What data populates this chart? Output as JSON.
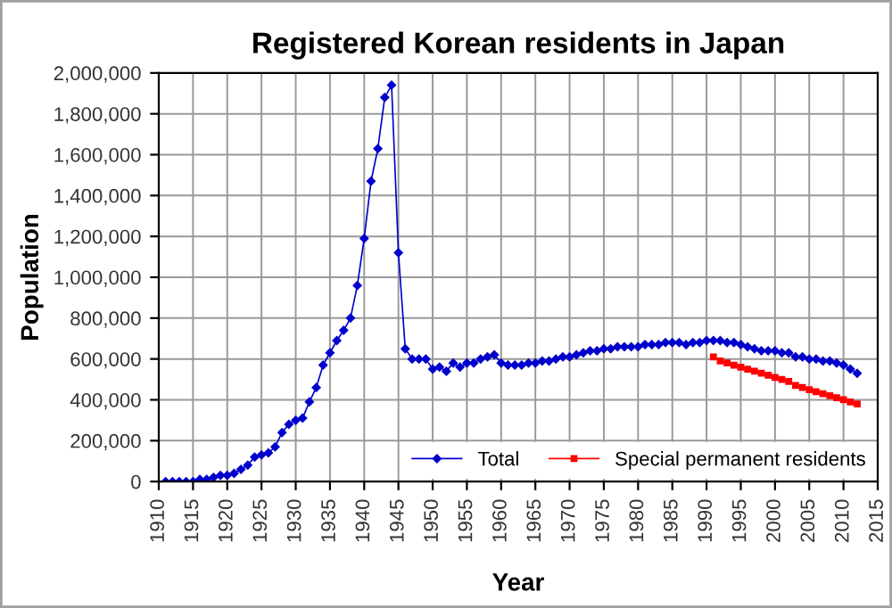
{
  "chart_data": {
    "type": "line",
    "title": "Registered Korean residents in Japan",
    "xlabel": "Year",
    "ylabel": "Population",
    "xlim": [
      1910,
      2015
    ],
    "xticks": [
      1910,
      1915,
      1920,
      1925,
      1930,
      1935,
      1940,
      1945,
      1950,
      1955,
      1960,
      1965,
      1970,
      1975,
      1980,
      1985,
      1990,
      1995,
      2000,
      2005,
      2010,
      2015
    ],
    "ylim": [
      0,
      2000000
    ],
    "yticks": [
      {
        "value": 0,
        "label": "0"
      },
      {
        "value": 200000,
        "label": "200,000"
      },
      {
        "value": 400000,
        "label": "400,000"
      },
      {
        "value": 600000,
        "label": "600,000"
      },
      {
        "value": 800000,
        "label": "800,000"
      },
      {
        "value": 1000000,
        "label": "1,000,000"
      },
      {
        "value": 1200000,
        "label": "1,200,000"
      },
      {
        "value": 1400000,
        "label": "1,400,000"
      },
      {
        "value": 1600000,
        "label": "1,600,000"
      },
      {
        "value": 1800000,
        "label": "1,800,000"
      },
      {
        "value": 2000000,
        "label": "2,000,000"
      }
    ],
    "grid": true,
    "legend": "bottom right",
    "series": [
      {
        "name": "Total",
        "color": "#0000cc",
        "marker": "diamond",
        "line_style": "solid",
        "x": [
          1911,
          1912,
          1913,
          1914,
          1915,
          1916,
          1917,
          1918,
          1919,
          1920,
          1921,
          1922,
          1923,
          1924,
          1925,
          1926,
          1927,
          1928,
          1929,
          1930,
          1931,
          1932,
          1933,
          1934,
          1935,
          1936,
          1937,
          1938,
          1939,
          1940,
          1941,
          1942,
          1943,
          1944,
          1945,
          1946,
          1947,
          1948,
          1949,
          1950,
          1951,
          1952,
          1953,
          1954,
          1955,
          1956,
          1957,
          1958,
          1959,
          1960,
          1961,
          1962,
          1963,
          1964,
          1965,
          1966,
          1967,
          1968,
          1969,
          1970,
          1971,
          1972,
          1973,
          1974,
          1975,
          1976,
          1977,
          1978,
          1979,
          1980,
          1981,
          1982,
          1983,
          1984,
          1985,
          1986,
          1987,
          1988,
          1989,
          1990,
          1991,
          1992,
          1993,
          1994,
          1995,
          1996,
          1997,
          1998,
          1999,
          2000,
          2001,
          2002,
          2003,
          2004,
          2005,
          2006,
          2007,
          2008,
          2009,
          2010,
          2011,
          2012
        ],
        "values": [
          0,
          0,
          0,
          0,
          0,
          10000,
          10000,
          20000,
          30000,
          30000,
          40000,
          60000,
          80000,
          120000,
          130000,
          140000,
          170000,
          240000,
          280000,
          300000,
          310000,
          390000,
          460000,
          570000,
          630000,
          690000,
          740000,
          800000,
          960000,
          1190000,
          1470000,
          1630000,
          1880000,
          1940000,
          1120000,
          650000,
          600000,
          600000,
          600000,
          550000,
          560000,
          540000,
          580000,
          560000,
          580000,
          580000,
          600000,
          610000,
          620000,
          580000,
          570000,
          570000,
          570000,
          580000,
          580000,
          590000,
          590000,
          600000,
          610000,
          610000,
          620000,
          630000,
          640000,
          640000,
          650000,
          650000,
          660000,
          660000,
          660000,
          660000,
          670000,
          670000,
          670000,
          680000,
          680000,
          680000,
          670000,
          680000,
          680000,
          690000,
          690000,
          690000,
          680000,
          680000,
          670000,
          660000,
          650000,
          640000,
          640000,
          640000,
          630000,
          630000,
          610000,
          610000,
          600000,
          600000,
          590000,
          590000,
          580000,
          570000,
          550000,
          530000
        ]
      },
      {
        "name": "Special permanent residents",
        "color": "#ff0000",
        "marker": "square",
        "line_style": "solid",
        "x": [
          1991,
          1992,
          1993,
          1994,
          1995,
          1996,
          1997,
          1998,
          1999,
          2000,
          2001,
          2002,
          2003,
          2004,
          2005,
          2006,
          2007,
          2008,
          2009,
          2010,
          2011,
          2012
        ],
        "values": [
          610000,
          590000,
          580000,
          570000,
          560000,
          550000,
          540000,
          530000,
          520000,
          510000,
          500000,
          490000,
          470000,
          460000,
          450000,
          440000,
          430000,
          420000,
          410000,
          400000,
          390000,
          380000
        ]
      }
    ]
  }
}
